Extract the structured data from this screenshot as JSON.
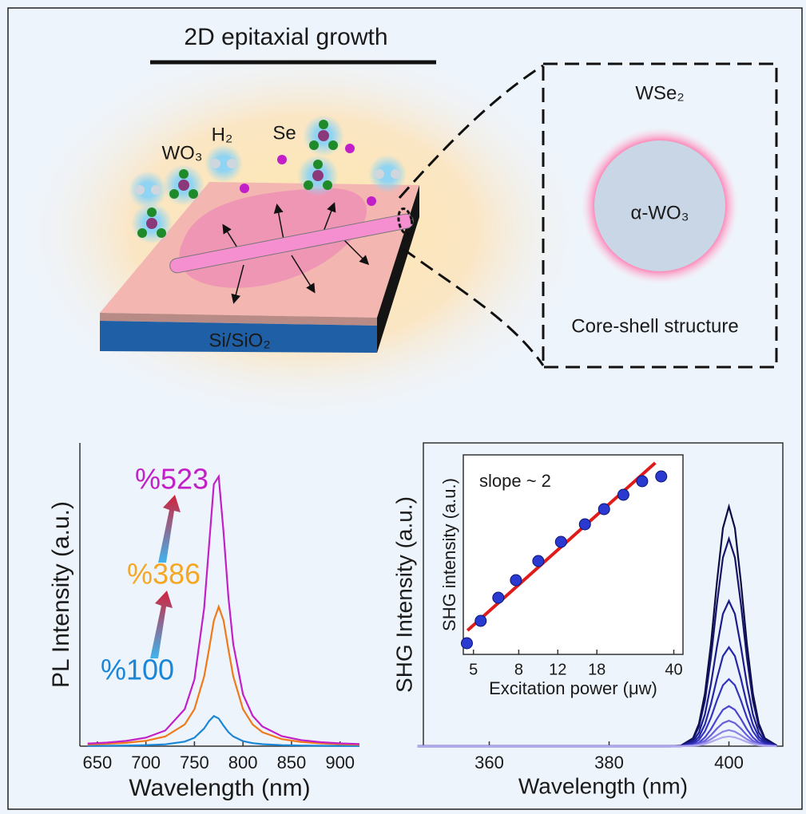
{
  "diagram": {
    "title": "2D epitaxial growth",
    "molecules": {
      "wo3": "WO₃",
      "h2": "H₂",
      "se": "Se"
    },
    "substrate": "Si/SiO₂",
    "inset": {
      "shell": "WSe₂",
      "core": "α-WO₃",
      "caption": "Core-shell structure"
    }
  },
  "chart_data": [
    {
      "type": "line",
      "y_label": "PL Intensity (a.u.)",
      "x_label": "Wavelength (nm)",
      "x": [
        640,
        660,
        680,
        700,
        720,
        740,
        750,
        760,
        765,
        770,
        775,
        780,
        785,
        790,
        800,
        810,
        820,
        840,
        860,
        880,
        900,
        920
      ],
      "series": [
        {
          "color": "#1a86d8",
          "values": [
            0.01,
            0.014,
            0.02,
            0.032,
            0.061,
            0.15,
            0.277,
            0.583,
            0.824,
            0.994,
            0.913,
            0.676,
            0.463,
            0.319,
            0.167,
            0.1,
            0.066,
            0.034,
            0.021,
            0.014,
            0.01,
            0.008
          ]
        },
        {
          "color": "#f07a1a",
          "values": [
            0.056,
            0.077,
            0.112,
            0.177,
            0.319,
            0.714,
            1.22,
            2.3,
            3.19,
            4.14,
            4.6,
            4.14,
            3.19,
            2.3,
            1.22,
            0.714,
            0.46,
            0.232,
            0.139,
            0.092,
            0.065,
            0.049
          ]
        },
        {
          "color": "#c21fc9",
          "values": [
            0.086,
            0.119,
            0.174,
            0.28,
            0.517,
            1.22,
            2.2,
            4.55,
            6.6,
            8.64,
            8.89,
            7.05,
            4.91,
            3.36,
            1.71,
            1.0,
            0.647,
            0.33,
            0.199,
            0.132,
            0.094,
            0.071
          ]
        }
      ],
      "xlim": [
        632,
        920
      ],
      "xticks": [
        650,
        700,
        750,
        800,
        850,
        900
      ],
      "ylim": [
        0,
        10
      ],
      "annotations": [
        {
          "text": "%523",
          "color": "#c21fc9"
        },
        {
          "text": "%386",
          "color": "#f5a623"
        },
        {
          "text": "%100",
          "color": "#1a86d8"
        }
      ]
    },
    {
      "type": "line",
      "y_label": "SHG Intensity (a.u.)",
      "x_label": "Wavelength (nm)",
      "x": [
        348,
        390,
        392,
        394,
        395,
        396,
        397,
        398,
        399,
        400,
        401,
        402,
        403,
        404,
        405,
        406,
        408
      ],
      "series": [
        {
          "color": "#0b0b45",
          "values": [
            0,
            0,
            0.02,
            0.26,
            0.74,
            1.74,
            3.37,
            5.41,
            7.19,
            7.9,
            7.19,
            5.41,
            3.37,
            1.74,
            0.74,
            0.26,
            0.02
          ]
        },
        {
          "color": "#14146a",
          "values": [
            0,
            0,
            0.01,
            0.23,
            0.64,
            1.5,
            2.92,
            4.69,
            6.22,
            6.84,
            6.22,
            4.69,
            2.92,
            1.5,
            0.64,
            0.23,
            0.01
          ]
        },
        {
          "color": "#1c1c8c",
          "values": [
            0,
            0,
            0.01,
            0.16,
            0.45,
            1.05,
            2.05,
            3.28,
            4.36,
            4.79,
            4.36,
            3.28,
            2.05,
            1.05,
            0.45,
            0.16,
            0.01
          ]
        },
        {
          "color": "#2626a8",
          "values": [
            0,
            0,
            0.01,
            0.11,
            0.31,
            0.72,
            1.39,
            2.23,
            2.97,
            3.26,
            2.97,
            2.23,
            1.39,
            0.72,
            0.31,
            0.11,
            0.01
          ]
        },
        {
          "color": "#3333bf",
          "values": [
            0,
            0,
            0,
            0.07,
            0.21,
            0.49,
            0.94,
            1.51,
            2.01,
            2.21,
            2.01,
            1.51,
            0.94,
            0.49,
            0.21,
            0.07,
            0
          ]
        },
        {
          "color": "#4a44d0",
          "values": [
            0,
            0,
            0,
            0.04,
            0.12,
            0.29,
            0.56,
            0.9,
            1.2,
            1.32,
            1.2,
            0.9,
            0.56,
            0.29,
            0.12,
            0.04,
            0
          ]
        },
        {
          "color": "#6a60dc",
          "values": [
            0,
            0,
            0,
            0.03,
            0.08,
            0.18,
            0.36,
            0.58,
            0.76,
            0.84,
            0.76,
            0.58,
            0.36,
            0.18,
            0.08,
            0.03,
            0
          ]
        },
        {
          "color": "#8c82e4",
          "values": [
            0,
            0,
            0,
            0.02,
            0.05,
            0.12,
            0.23,
            0.36,
            0.48,
            0.53,
            0.48,
            0.36,
            0.23,
            0.12,
            0.05,
            0.02,
            0
          ]
        },
        {
          "color": "#b0a8ec",
          "values": [
            0,
            0,
            0,
            0.01,
            0.03,
            0.07,
            0.14,
            0.22,
            0.29,
            0.32,
            0.29,
            0.22,
            0.14,
            0.07,
            0.03,
            0.01,
            0
          ]
        }
      ],
      "xlim": [
        349,
        409
      ],
      "xticks": [
        360,
        380,
        400
      ],
      "ylim": [
        0,
        10
      ]
    },
    {
      "type": "scatter",
      "x_label": "Excitation power (μw)",
      "y_label": "SHG intensity (a.u.)",
      "annotation": "slope ~ 2",
      "x": [
        4.67,
        5.39,
        6.47,
        7.77,
        9.8,
        12.4,
        15.9,
        19.4,
        23.7,
        28.8,
        35.1
      ],
      "values": [
        0.56,
        1.68,
        2.84,
        3.72,
        4.68,
        5.64,
        6.52,
        7.28,
        8.0,
        8.68,
        8.92
      ],
      "color": "#2a3ad0",
      "x_scale": "log",
      "xlim": [
        4.5,
        44
      ],
      "xticks": [
        5,
        8,
        12,
        18,
        40
      ],
      "ylim": [
        0,
        10
      ],
      "fit": {
        "x": [
          4.7,
          33
        ],
        "values": [
          1.2,
          9.6
        ],
        "color": "#e01b1b"
      }
    }
  ]
}
